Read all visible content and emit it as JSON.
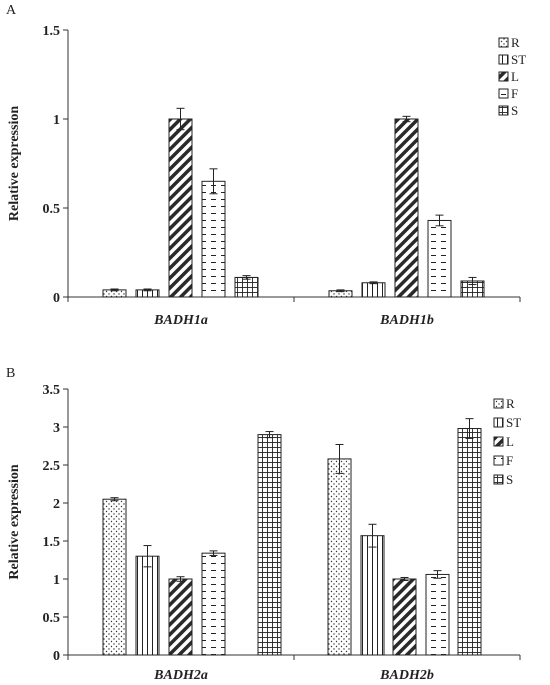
{
  "chart_data": [
    {
      "type": "bar",
      "panel_label": "A",
      "ylabel": "Relative expression",
      "categories": [
        "BADH1a",
        "BADH1b"
      ],
      "ylim": [
        0,
        1.5
      ],
      "yticks": [
        0,
        0.5,
        1,
        1.5
      ],
      "ytick_labels": [
        "0",
        "0.5",
        "1",
        "1.5"
      ],
      "legend_position": "top-right",
      "series": [
        {
          "name": "R",
          "values": [
            0.04,
            0.035
          ],
          "errors": [
            0.005,
            0.005
          ]
        },
        {
          "name": "ST",
          "values": [
            0.04,
            0.08
          ],
          "errors": [
            0.005,
            0.005
          ]
        },
        {
          "name": "L",
          "values": [
            1.0,
            1.0
          ],
          "errors": [
            0.06,
            0.015
          ]
        },
        {
          "name": "F",
          "values": [
            0.65,
            0.43
          ],
          "errors": [
            0.07,
            0.03
          ]
        },
        {
          "name": "S",
          "values": [
            0.11,
            0.09
          ],
          "errors": [
            0.01,
            0.02
          ]
        }
      ]
    },
    {
      "type": "bar",
      "panel_label": "B",
      "ylabel": "Relative expression",
      "categories": [
        "BADH2a",
        "BADH2b"
      ],
      "ylim": [
        0,
        3.5
      ],
      "yticks": [
        0,
        0.5,
        1,
        1.5,
        2,
        2.5,
        3,
        3.5
      ],
      "ytick_labels": [
        "0",
        "0.5",
        "1",
        "1.5",
        "2",
        "2.5",
        "3",
        "3.5"
      ],
      "legend_position": "top-right",
      "series": [
        {
          "name": "R",
          "values": [
            2.05,
            2.58
          ],
          "errors": [
            0.02,
            0.19
          ]
        },
        {
          "name": "ST",
          "values": [
            1.3,
            1.57
          ],
          "errors": [
            0.14,
            0.15
          ]
        },
        {
          "name": "L",
          "values": [
            1.0,
            1.0
          ],
          "errors": [
            0.03,
            0.02
          ]
        },
        {
          "name": "F",
          "values": [
            1.34,
            1.06
          ],
          "errors": [
            0.03,
            0.05
          ]
        },
        {
          "name": "S",
          "values": [
            2.9,
            2.98
          ],
          "errors": [
            0.04,
            0.13
          ]
        }
      ]
    }
  ]
}
